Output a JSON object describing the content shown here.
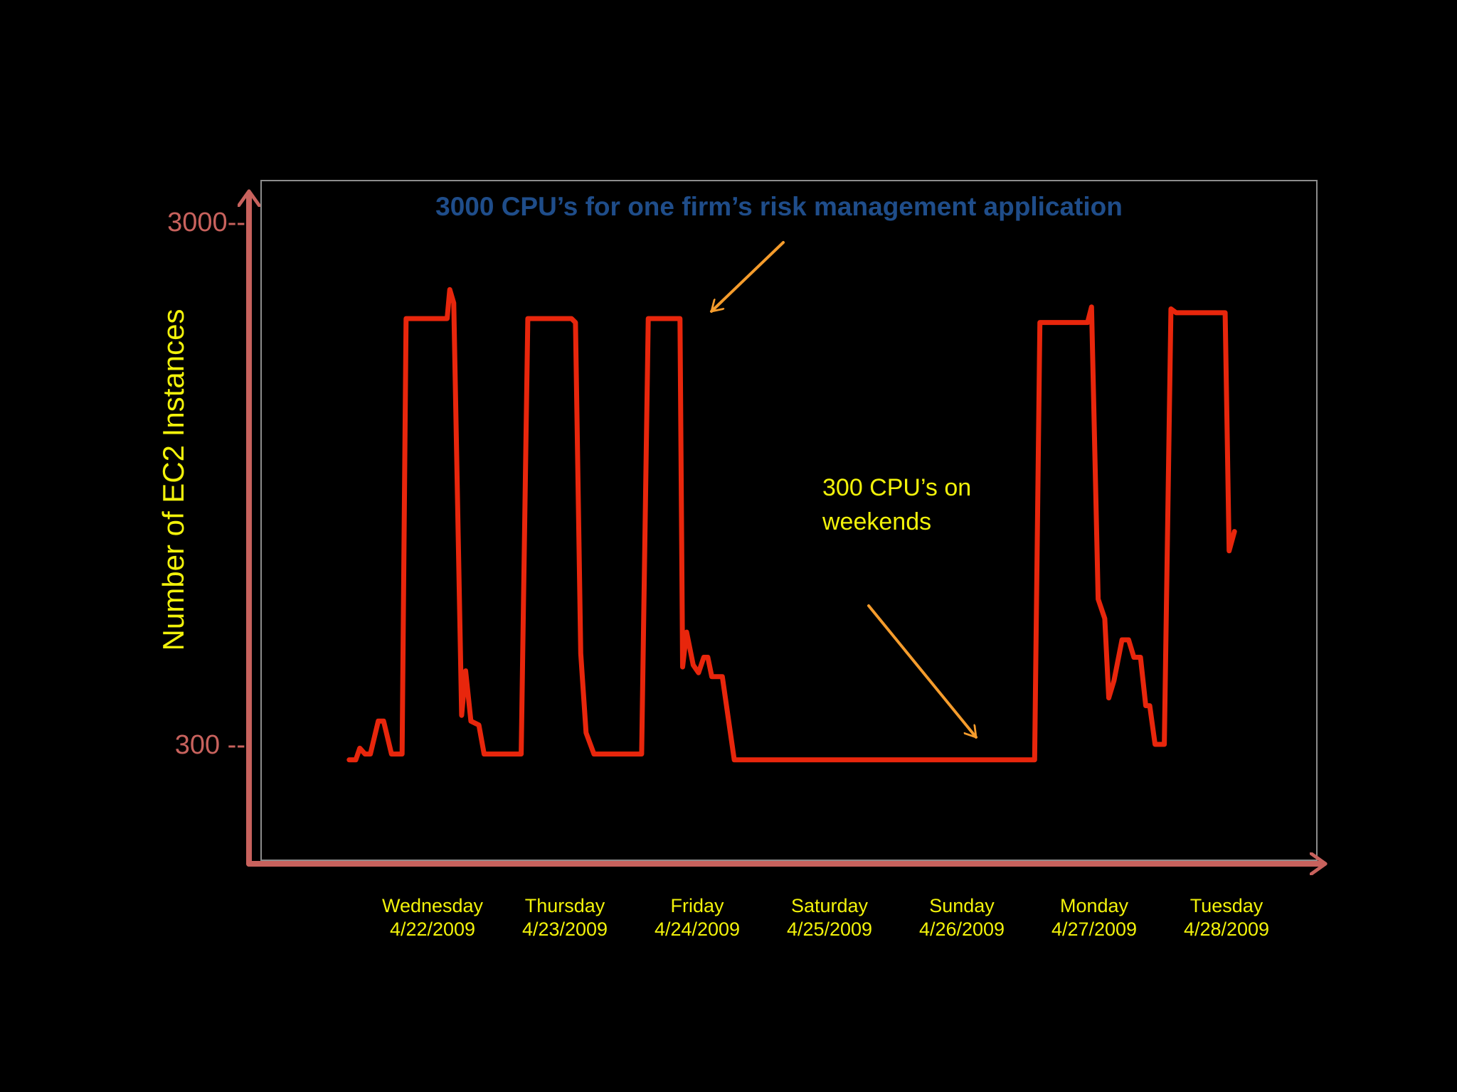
{
  "colors": {
    "background": "#000000",
    "series_line": "#e8260c",
    "axis": "#c8625d",
    "tick_label": "#c8625d",
    "axis_title": "#f2f20a",
    "x_label": "#f2f20a",
    "title": "#1f4d8a",
    "annotation_text": "#f2f20a",
    "annotation_arrow": "#f59c2c",
    "frame": "#8c8c8c"
  },
  "chart_data": {
    "type": "line",
    "title": "3000 CPU’s for one firm’s risk management application",
    "ylabel": "Number of EC2 Instances",
    "xlabel": "",
    "yticks": [
      {
        "value": 3000,
        "label": "3000--"
      },
      {
        "value": 300,
        "label": "300 --"
      }
    ],
    "xticks": [
      {
        "day": 0,
        "line1": "Wednesday",
        "line2": "4/22/2009"
      },
      {
        "day": 1,
        "line1": "Thursday",
        "line2": "4/23/2009"
      },
      {
        "day": 2,
        "line1": "Friday",
        "line2": "4/24/2009"
      },
      {
        "day": 3,
        "line1": "Saturday",
        "line2": "4/25/2009"
      },
      {
        "day": 4,
        "line1": "Sunday",
        "line2": "4/26/2009"
      },
      {
        "day": 5,
        "line1": "Monday",
        "line2": "4/27/2009"
      },
      {
        "day": 6,
        "line1": "Tuesday",
        "line2": "4/28/2009"
      }
    ],
    "series": [
      {
        "points": [
          [
            -0.63,
            220
          ],
          [
            -0.58,
            220
          ],
          [
            -0.55,
            280
          ],
          [
            -0.51,
            250
          ],
          [
            -0.47,
            250
          ],
          [
            -0.41,
            420
          ],
          [
            -0.37,
            420
          ],
          [
            -0.31,
            250
          ],
          [
            -0.23,
            250
          ],
          [
            -0.2,
            2500
          ],
          [
            0.11,
            2500
          ],
          [
            0.13,
            2650
          ],
          [
            0.16,
            2580
          ],
          [
            0.22,
            450
          ],
          [
            0.25,
            680
          ],
          [
            0.29,
            420
          ],
          [
            0.35,
            400
          ],
          [
            0.39,
            250
          ],
          [
            0.67,
            250
          ],
          [
            0.72,
            2500
          ],
          [
            1.05,
            2500
          ],
          [
            1.08,
            2480
          ],
          [
            1.12,
            770
          ],
          [
            1.16,
            360
          ],
          [
            1.22,
            250
          ],
          [
            1.58,
            250
          ],
          [
            1.63,
            2500
          ],
          [
            1.87,
            2500
          ],
          [
            1.89,
            700
          ],
          [
            1.92,
            880
          ],
          [
            1.97,
            710
          ],
          [
            2.01,
            670
          ],
          [
            2.05,
            750
          ],
          [
            2.08,
            750
          ],
          [
            2.11,
            650
          ],
          [
            2.19,
            650
          ],
          [
            2.28,
            220
          ],
          [
            4.55,
            220
          ],
          [
            4.59,
            2480
          ],
          [
            4.95,
            2480
          ],
          [
            4.98,
            2560
          ],
          [
            5.03,
            1050
          ],
          [
            5.08,
            950
          ],
          [
            5.11,
            540
          ],
          [
            5.15,
            630
          ],
          [
            5.21,
            840
          ],
          [
            5.26,
            840
          ],
          [
            5.3,
            750
          ],
          [
            5.35,
            750
          ],
          [
            5.39,
            500
          ],
          [
            5.42,
            500
          ],
          [
            5.46,
            300
          ],
          [
            5.53,
            300
          ],
          [
            5.58,
            2550
          ],
          [
            5.62,
            2530
          ],
          [
            5.99,
            2530
          ],
          [
            6.02,
            1300
          ],
          [
            6.06,
            1400
          ]
        ]
      }
    ],
    "annotations": [
      {
        "text_lines": [
          "300 CPU’s on",
          "weekends"
        ]
      }
    ]
  }
}
